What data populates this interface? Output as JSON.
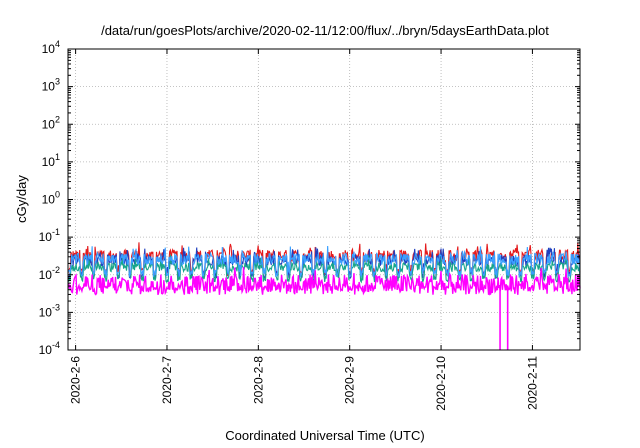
{
  "chart_data": {
    "type": "line",
    "title": "/data/run/goesPlots/archive/2020-02-11/12:00/flux/../bryn/5daysEarthData.plot",
    "xlabel": "Coordinated Universal Time (UTC)",
    "ylabel": "cGy/day",
    "yscale": "log",
    "ylim": [
      0.0001,
      10000
    ],
    "xlim": [
      "2020-02-05T22:00",
      "2020-02-11T12:30"
    ],
    "y_ticks": [
      {
        "base": "10",
        "exp": "-4"
      },
      {
        "base": "10",
        "exp": "-3"
      },
      {
        "base": "10",
        "exp": "-2"
      },
      {
        "base": "10",
        "exp": "-1"
      },
      {
        "base": "10",
        "exp": "0"
      },
      {
        "base": "10",
        "exp": "1"
      },
      {
        "base": "10",
        "exp": "2"
      },
      {
        "base": "10",
        "exp": "3"
      },
      {
        "base": "10",
        "exp": "4"
      }
    ],
    "x_ticks": [
      {
        "label": "2020-2-6",
        "date": "2020-02-06T00:00"
      },
      {
        "label": "2020-2-7",
        "date": "2020-02-07T00:00"
      },
      {
        "label": "2020-2-8",
        "date": "2020-02-08T00:00"
      },
      {
        "label": "2020-2-9",
        "date": "2020-02-09T00:00"
      },
      {
        "label": "2020-2-10",
        "date": "2020-02-10T00:00"
      },
      {
        "label": "2020-2-11",
        "date": "2020-02-11T00:00"
      }
    ],
    "grid": true,
    "series": [
      {
        "color": "#e41a1c",
        "base": 0.032,
        "dip": 0.012,
        "jitter": 0.32
      },
      {
        "color": "#1f3fbf",
        "base": 0.024,
        "dip": 0.01,
        "jitter": 0.3
      },
      {
        "color": "#17a589",
        "base": 0.016,
        "dip": 0.008,
        "jitter": 0.25
      },
      {
        "color": "#3aa0ff",
        "base": 0.026,
        "dip": 0.011,
        "jitter": 0.3
      },
      {
        "color": "#ff00ff",
        "base": 0.0055,
        "dip": 0.0045,
        "jitter": 0.55
      }
    ],
    "notable_events": [
      {
        "date": "2020-02-10T15:30",
        "series_color": "#ff00ff",
        "value": 0.0001
      },
      {
        "date": "2020-02-10T17:30",
        "series_color": "#ff00ff",
        "value": 0.0001
      }
    ]
  }
}
